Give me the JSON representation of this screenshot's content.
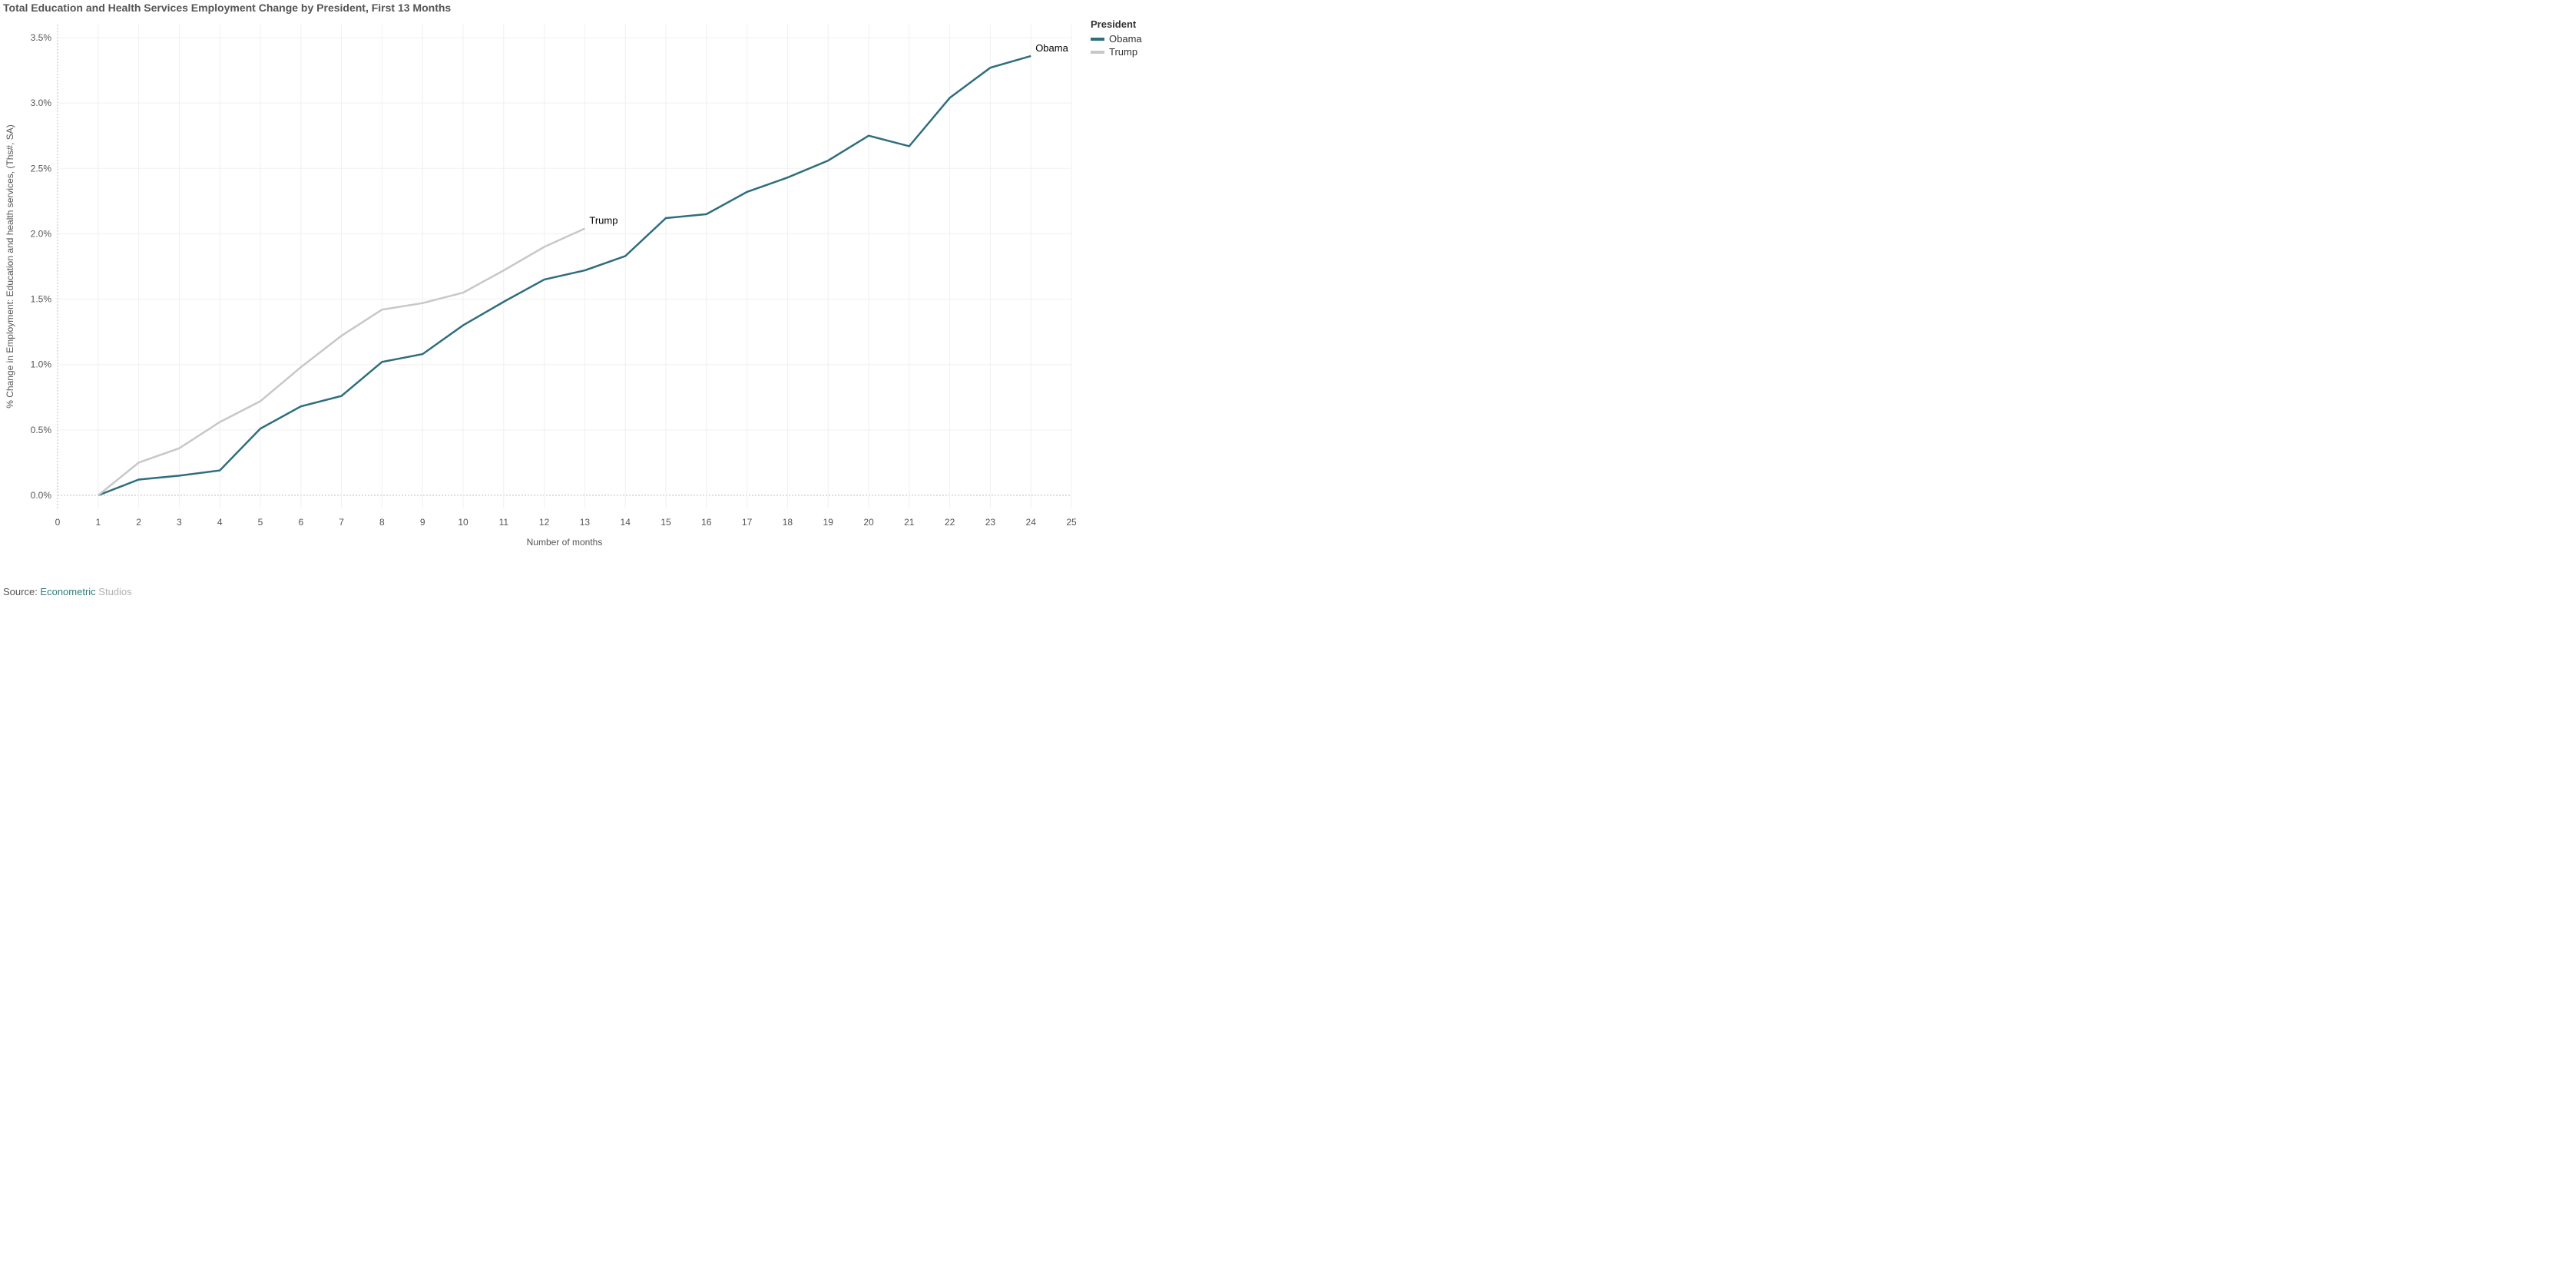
{
  "title": "Total Education and Health Services Employment Change by President, First 13 Months",
  "source_prefix": "Source: ",
  "source_link_text": "Econometric",
  "source_muted_text": " Studios",
  "chart": {
    "type": "line",
    "x_axis": {
      "label": "Number of months",
      "min": 0,
      "max": 25,
      "tick_step": 1,
      "label_fontsize": 12
    },
    "y_axis": {
      "label": "% Change in Employment: Education and health services, (Ths#, SA)",
      "min": -0.1,
      "max": 3.6,
      "tick_step": 0.5,
      "tick_format": "percent_one_decimal",
      "label_fontsize": 12
    },
    "grid_color": "#f0f0f0",
    "zero_line_color": "#bfbfbf",
    "background_color": "#ffffff",
    "line_width": 2.5,
    "legend": {
      "title": "President",
      "position": "top-right",
      "items": [
        {
          "label": "Obama",
          "color": "#2e6e7e"
        },
        {
          "label": "Trump",
          "color": "#c8c8c8"
        }
      ]
    },
    "series": [
      {
        "name": "Obama",
        "color": "#2e6e7e",
        "end_label": "Obama",
        "x": [
          1,
          2,
          3,
          4,
          5,
          6,
          7,
          8,
          9,
          10,
          11,
          12,
          13,
          14,
          15,
          16,
          17,
          18,
          19,
          20,
          21,
          22,
          23,
          24
        ],
        "y": [
          0.0,
          0.12,
          0.15,
          0.19,
          0.51,
          0.68,
          0.76,
          1.02,
          1.08,
          1.3,
          1.48,
          1.65,
          1.72,
          1.83,
          2.12,
          2.15,
          2.32,
          2.43,
          2.56,
          2.75,
          2.67,
          3.04,
          3.27,
          3.36
        ]
      },
      {
        "name": "Trump",
        "color": "#c8c8c8",
        "end_label": "Trump",
        "x": [
          1,
          2,
          3,
          4,
          5,
          6,
          7,
          8,
          9,
          10,
          11,
          12,
          13
        ],
        "y": [
          0.0,
          0.25,
          0.36,
          0.56,
          0.72,
          0.98,
          1.22,
          1.42,
          1.47,
          1.55,
          1.72,
          1.9,
          2.04
        ]
      }
    ]
  }
}
